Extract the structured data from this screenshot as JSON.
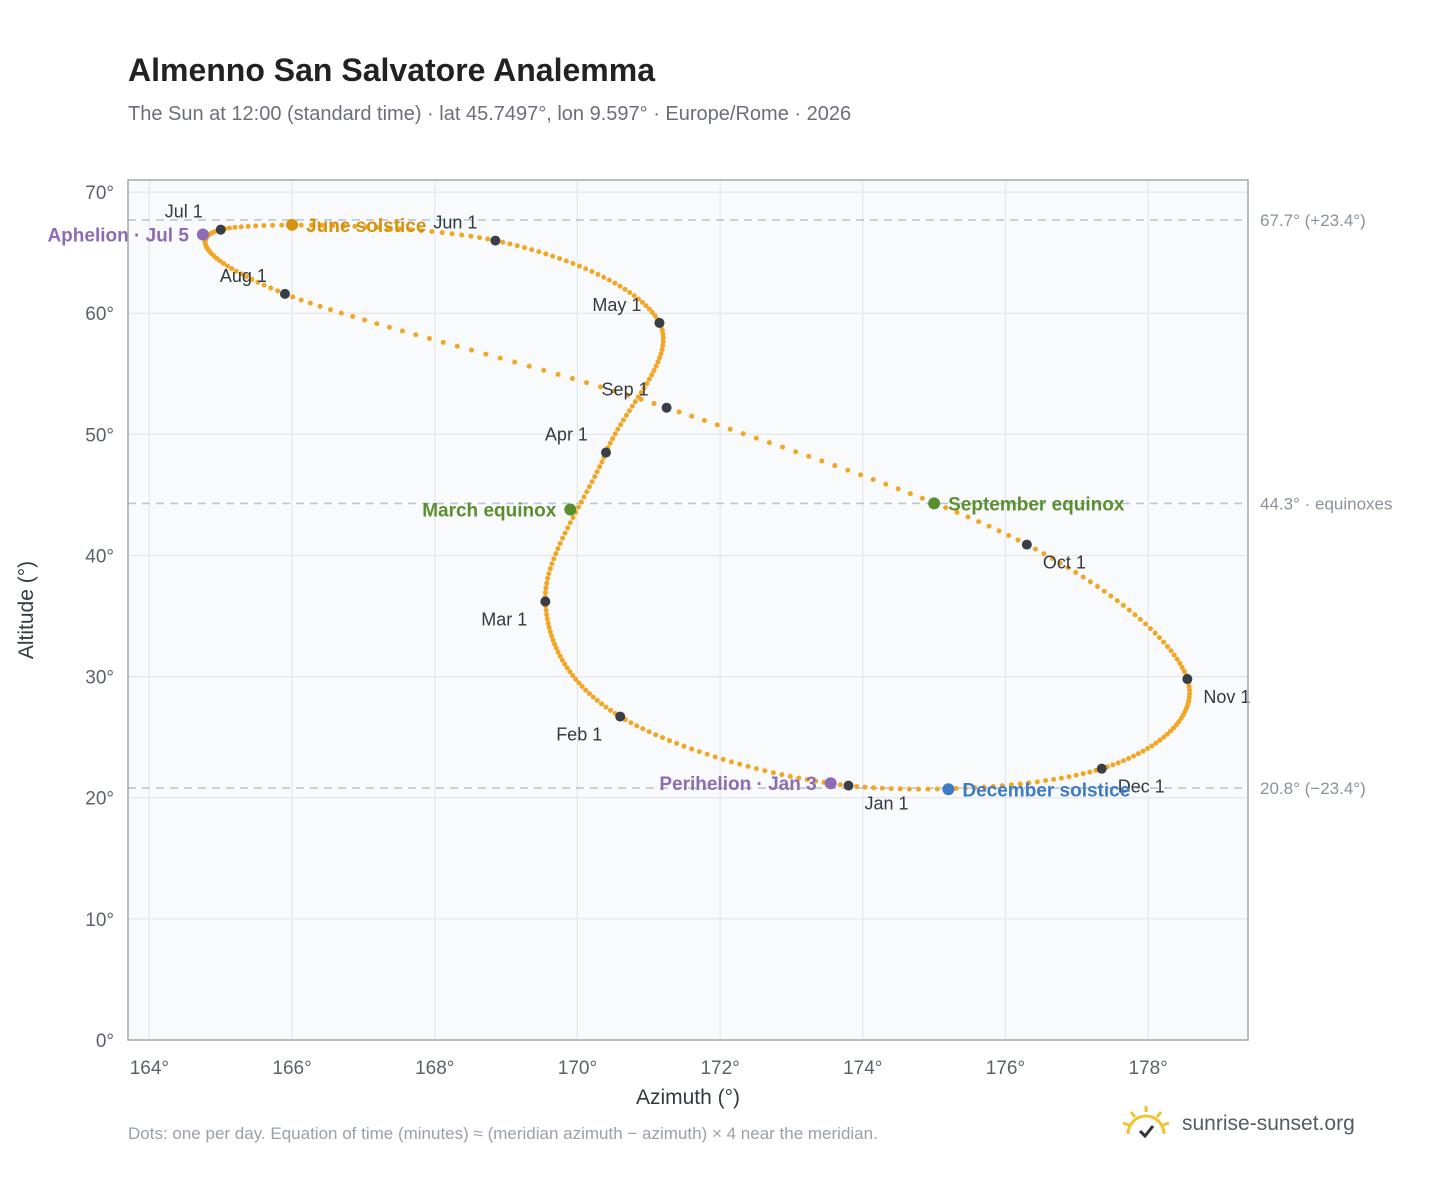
{
  "title": "Almenno San Salvatore Analemma",
  "subtitle": "The Sun at 12:00 (standard time) · lat 45.7497°, lon 9.597° · Europe/Rome · 2026",
  "footnote": "Dots: one per day. Equation of time (minutes) ≈ (meridian azimuth − azimuth) × 4 near the meridian.",
  "brand": {
    "text": "sunrise-sunset.org",
    "icon": "sun-logo-icon"
  },
  "chart_data": {
    "type": "scatter",
    "xlabel": "Azimuth (°)",
    "ylabel": "Altitude (°)",
    "xlim": [
      163.7,
      179.4
    ],
    "ylim": [
      0,
      71
    ],
    "xticks": [
      164,
      166,
      168,
      170,
      172,
      174,
      176,
      178
    ],
    "yticks": [
      0,
      10,
      20,
      30,
      40,
      50,
      60,
      70
    ],
    "tick_suffix": "°",
    "grid": true,
    "colors": {
      "path": "#f3a524",
      "month": "#3a3f47",
      "june": "#d4920f",
      "equinox": "#5a8f2e",
      "december": "#3d7cc4",
      "apsis": "#8e6bb5",
      "refline": "#b8c7d1",
      "plot_bg": "#f8fafc",
      "frame": "#a0a8b4"
    },
    "reference_lines": [
      {
        "y": 67.7,
        "label": "67.7° (+23.4°)"
      },
      {
        "y": 44.3,
        "label": "44.3° · equinoxes"
      },
      {
        "y": 20.8,
        "label": "20.8° (−23.4°)"
      }
    ],
    "daily_path": [
      {
        "date": "Jan 1",
        "x": 173.8,
        "y": 21.0
      },
      {
        "date": "Feb 1",
        "x": 170.6,
        "y": 26.7
      },
      {
        "date": "Mar 1",
        "x": 169.55,
        "y": 36.2
      },
      {
        "date": "Apr 1",
        "x": 170.4,
        "y": 48.5
      },
      {
        "date": "May 1",
        "x": 171.15,
        "y": 59.2
      },
      {
        "date": "Jun 1",
        "x": 168.85,
        "y": 66.0
      },
      {
        "date": "Jul 1",
        "x": 165.0,
        "y": 66.9
      },
      {
        "date": "Aug 1",
        "x": 165.9,
        "y": 61.6
      },
      {
        "date": "Sep 1",
        "x": 171.25,
        "y": 52.2
      },
      {
        "date": "Oct 1",
        "x": 176.3,
        "y": 40.9
      },
      {
        "date": "Nov 1",
        "x": 178.55,
        "y": 29.8
      },
      {
        "date": "Dec 1",
        "x": 177.35,
        "y": 22.4
      },
      {
        "date": "Dec 31",
        "x": 173.8,
        "y": 21.0
      }
    ],
    "month_markers": [
      {
        "label": "Jan 1",
        "x": 173.8,
        "y": 21.0,
        "anchor": "below-right"
      },
      {
        "label": "Feb 1",
        "x": 170.6,
        "y": 26.7,
        "anchor": "below-left"
      },
      {
        "label": "Mar 1",
        "x": 169.55,
        "y": 36.2,
        "anchor": "below-left"
      },
      {
        "label": "Apr 1",
        "x": 170.4,
        "y": 48.5,
        "anchor": "above-left"
      },
      {
        "label": "May 1",
        "x": 171.15,
        "y": 59.2,
        "anchor": "above-left"
      },
      {
        "label": "Jun 1",
        "x": 168.85,
        "y": 66.0,
        "anchor": "above-left"
      },
      {
        "label": "Jul 1",
        "x": 165.0,
        "y": 66.9,
        "anchor": "above-left"
      },
      {
        "label": "Aug 1",
        "x": 165.9,
        "y": 61.6,
        "anchor": "above-left"
      },
      {
        "label": "Sep 1",
        "x": 171.25,
        "y": 52.2,
        "anchor": "above-left"
      },
      {
        "label": "Oct 1",
        "x": 176.3,
        "y": 40.9,
        "anchor": "below-right"
      },
      {
        "label": "Nov 1",
        "x": 178.55,
        "y": 29.8,
        "anchor": "below-right"
      },
      {
        "label": "Dec 1",
        "x": 177.35,
        "y": 22.4,
        "anchor": "below-right"
      }
    ],
    "events": [
      {
        "label": "June solstice",
        "x": 166.0,
        "y": 67.3,
        "color": "#d4920f",
        "side": "right"
      },
      {
        "label": "Aphelion · Jul 5",
        "x": 164.75,
        "y": 66.5,
        "color": "#8e6bb5",
        "side": "left"
      },
      {
        "label": "March equinox",
        "x": 169.9,
        "y": 43.8,
        "color": "#5a8f2e",
        "side": "left"
      },
      {
        "label": "September equinox",
        "x": 175.0,
        "y": 44.3,
        "color": "#5a8f2e",
        "side": "right"
      },
      {
        "label": "Perihelion · Jan 3",
        "x": 173.55,
        "y": 21.2,
        "color": "#8e6bb5",
        "side": "left"
      },
      {
        "label": "December solstice",
        "x": 175.2,
        "y": 20.7,
        "color": "#3d7cc4",
        "side": "right"
      }
    ]
  }
}
